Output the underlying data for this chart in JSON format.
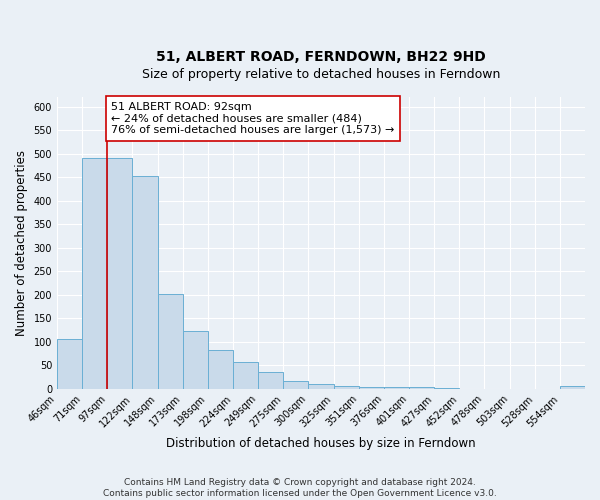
{
  "title": "51, ALBERT ROAD, FERNDOWN, BH22 9HD",
  "subtitle": "Size of property relative to detached houses in Ferndown",
  "xlabel": "Distribution of detached houses by size in Ferndown",
  "ylabel": "Number of detached properties",
  "bin_labels": [
    "46sqm",
    "71sqm",
    "97sqm",
    "122sqm",
    "148sqm",
    "173sqm",
    "198sqm",
    "224sqm",
    "249sqm",
    "275sqm",
    "300sqm",
    "325sqm",
    "351sqm",
    "376sqm",
    "401sqm",
    "427sqm",
    "452sqm",
    "478sqm",
    "503sqm",
    "528sqm",
    "554sqm"
  ],
  "bar_values": [
    105,
    490,
    490,
    453,
    202,
    122,
    83,
    57,
    35,
    17,
    10,
    7,
    4,
    4,
    3,
    1,
    0,
    0,
    0,
    0,
    5
  ],
  "bar_color": "#c9daea",
  "bar_edge_color": "#6aafd4",
  "vline_x": 2,
  "vline_color": "#cc0000",
  "annotation_text": "51 ALBERT ROAD: 92sqm\n← 24% of detached houses are smaller (484)\n76% of semi-detached houses are larger (1,573) →",
  "annotation_box_color": "#ffffff",
  "annotation_box_edge_color": "#cc0000",
  "ylim": [
    0,
    620
  ],
  "yticks": [
    0,
    50,
    100,
    150,
    200,
    250,
    300,
    350,
    400,
    450,
    500,
    550,
    600
  ],
  "footer_line1": "Contains HM Land Registry data © Crown copyright and database right 2024.",
  "footer_line2": "Contains public sector information licensed under the Open Government Licence v3.0.",
  "background_color": "#eaf0f6",
  "plot_background_color": "#eaf0f6",
  "grid_color": "#ffffff",
  "title_fontsize": 10,
  "subtitle_fontsize": 9,
  "axis_label_fontsize": 8.5,
  "tick_fontsize": 7,
  "annotation_fontsize": 8,
  "footer_fontsize": 6.5
}
